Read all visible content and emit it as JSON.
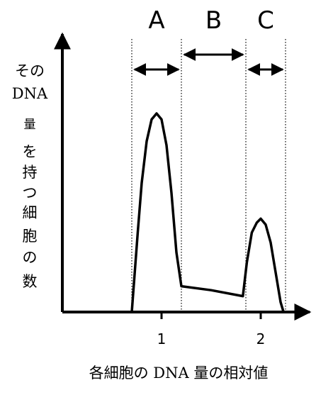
{
  "chart_data": {
    "type": "line",
    "title": "",
    "xlabel": "各細胞の DNA 量の相対値",
    "ylabel_lines": [
      "その",
      "DNA",
      "量",
      "を",
      "持",
      "つ",
      "細",
      "胞",
      "の",
      "数"
    ],
    "x_ticks": [
      "1",
      "2"
    ],
    "regions": [
      {
        "label": "A",
        "from": 0.7,
        "to": 1.2
      },
      {
        "label": "B",
        "from": 1.2,
        "to": 1.85
      },
      {
        "label": "C",
        "from": 1.85,
        "to": 2.25
      }
    ],
    "series": [
      {
        "x": [
          0.7,
          0.76,
          0.8,
          0.85,
          0.9,
          0.95,
          1.0,
          1.05,
          1.1,
          1.15,
          1.2,
          1.5,
          1.82,
          1.86,
          1.91,
          1.96,
          2.0,
          2.05,
          2.1,
          2.15,
          2.2,
          2.23
        ],
        "y": [
          0.0,
          0.4,
          0.65,
          0.86,
          0.97,
          1.0,
          0.97,
          0.84,
          0.6,
          0.3,
          0.13,
          0.11,
          0.08,
          0.25,
          0.4,
          0.45,
          0.47,
          0.44,
          0.35,
          0.2,
          0.05,
          0.0
        ]
      }
    ],
    "xlim": [
      0,
      2.5
    ],
    "ylim": [
      0,
      1.25
    ],
    "grid": false,
    "legend": "none"
  }
}
